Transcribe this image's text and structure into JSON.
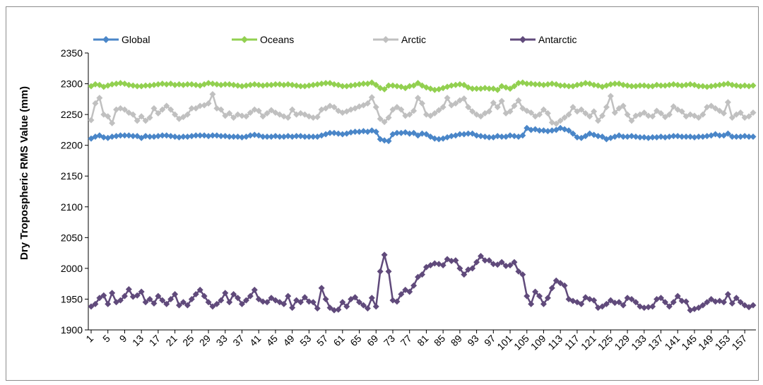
{
  "chart_data": {
    "type": "line",
    "title": "",
    "xlabel": "",
    "ylabel": "Dry Tropospheric RMS Value (mm)",
    "ylim": [
      1900,
      2350
    ],
    "yticks": [
      1900,
      1950,
      2000,
      2050,
      2100,
      2150,
      2200,
      2250,
      2300,
      2350
    ],
    "xlim": [
      1,
      159
    ],
    "xticks": [
      1,
      5,
      9,
      13,
      17,
      21,
      25,
      29,
      33,
      37,
      41,
      45,
      49,
      53,
      57,
      61,
      65,
      69,
      73,
      77,
      81,
      85,
      89,
      93,
      97,
      101,
      105,
      109,
      113,
      117,
      121,
      125,
      129,
      133,
      137,
      141,
      145,
      149,
      153,
      157
    ],
    "grid": false,
    "legend": "top",
    "x": [
      1,
      2,
      3,
      4,
      5,
      6,
      7,
      8,
      9,
      10,
      11,
      12,
      13,
      14,
      15,
      16,
      17,
      18,
      19,
      20,
      21,
      22,
      23,
      24,
      25,
      26,
      27,
      28,
      29,
      30,
      31,
      32,
      33,
      34,
      35,
      36,
      37,
      38,
      39,
      40,
      41,
      42,
      43,
      44,
      45,
      46,
      47,
      48,
      49,
      50,
      51,
      52,
      53,
      54,
      55,
      56,
      57,
      58,
      59,
      60,
      61,
      62,
      63,
      64,
      65,
      66,
      67,
      68,
      69,
      70,
      71,
      72,
      73,
      74,
      75,
      76,
      77,
      78,
      79,
      80,
      81,
      82,
      83,
      84,
      85,
      86,
      87,
      88,
      89,
      90,
      91,
      92,
      93,
      94,
      95,
      96,
      97,
      98,
      99,
      100,
      101,
      102,
      103,
      104,
      105,
      106,
      107,
      108,
      109,
      110,
      111,
      112,
      113,
      114,
      115,
      116,
      117,
      118,
      119,
      120,
      121,
      122,
      123,
      124,
      125,
      126,
      127,
      128,
      129,
      130,
      131,
      132,
      133,
      134,
      135,
      136,
      137,
      138,
      139,
      140,
      141,
      142,
      143,
      144,
      145,
      146,
      147,
      148,
      149,
      150,
      151,
      152,
      153,
      154,
      155,
      156,
      157,
      158,
      159
    ],
    "series": [
      {
        "name": "Global",
        "color": "#4a86c8",
        "marker": "diamond",
        "values": [
          2211,
          2214,
          2216,
          2213,
          2212,
          2214,
          2215,
          2216,
          2216,
          2216,
          2215,
          2215,
          2212,
          2215,
          2214,
          2214,
          2215,
          2216,
          2216,
          2215,
          2214,
          2213,
          2214,
          2214,
          2215,
          2216,
          2216,
          2216,
          2215,
          2216,
          2216,
          2215,
          2215,
          2214,
          2214,
          2214,
          2213,
          2214,
          2216,
          2217,
          2216,
          2214,
          2214,
          2214,
          2215,
          2214,
          2214,
          2215,
          2214,
          2215,
          2215,
          2214,
          2214,
          2214,
          2214,
          2216,
          2218,
          2220,
          2220,
          2219,
          2218,
          2219,
          2221,
          2222,
          2222,
          2223,
          2222,
          2224,
          2222,
          2210,
          2208,
          2207,
          2218,
          2220,
          2220,
          2221,
          2219,
          2220,
          2216,
          2219,
          2218,
          2214,
          2211,
          2210,
          2211,
          2213,
          2215,
          2216,
          2218,
          2218,
          2219,
          2219,
          2216,
          2215,
          2214,
          2213,
          2213,
          2215,
          2214,
          2214,
          2216,
          2215,
          2214,
          2216,
          2228,
          2225,
          2226,
          2224,
          2224,
          2223,
          2224,
          2225,
          2228,
          2226,
          2224,
          2219,
          2213,
          2212,
          2215,
          2219,
          2217,
          2215,
          2214,
          2210,
          2212,
          2214,
          2216,
          2214,
          2214,
          2215,
          2214,
          2213,
          2213,
          2212,
          2213,
          2213,
          2214,
          2213,
          2214,
          2215,
          2215,
          2214,
          2214,
          2214,
          2213,
          2214,
          2214,
          2215,
          2216,
          2218,
          2216,
          2216,
          2219,
          2214,
          2214,
          2214,
          2215,
          2214,
          2214
        ]
      },
      {
        "name": "Oceans",
        "color": "#92d050",
        "marker": "diamond",
        "values": [
          2296,
          2299,
          2298,
          2295,
          2297,
          2299,
          2300,
          2301,
          2300,
          2298,
          2297,
          2296,
          2296,
          2297,
          2297,
          2298,
          2299,
          2300,
          2299,
          2300,
          2298,
          2299,
          2298,
          2299,
          2299,
          2298,
          2297,
          2299,
          2301,
          2300,
          2299,
          2298,
          2299,
          2299,
          2298,
          2297,
          2296,
          2297,
          2298,
          2299,
          2298,
          2297,
          2298,
          2298,
          2299,
          2299,
          2298,
          2299,
          2298,
          2297,
          2296,
          2296,
          2297,
          2298,
          2299,
          2300,
          2301,
          2301,
          2299,
          2298,
          2296,
          2296,
          2297,
          2298,
          2299,
          2300,
          2300,
          2302,
          2298,
          2293,
          2291,
          2297,
          2297,
          2296,
          2295,
          2293,
          2296,
          2297,
          2301,
          2297,
          2294,
          2292,
          2290,
          2291,
          2293,
          2295,
          2297,
          2298,
          2299,
          2298,
          2294,
          2292,
          2292,
          2292,
          2293,
          2292,
          2292,
          2290,
          2296,
          2294,
          2292,
          2296,
          2301,
          2302,
          2300,
          2300,
          2299,
          2299,
          2298,
          2299,
          2300,
          2299,
          2297,
          2297,
          2296,
          2296,
          2298,
          2299,
          2301,
          2300,
          2298,
          2297,
          2295,
          2297,
          2299,
          2300,
          2300,
          2298,
          2297,
          2296,
          2296,
          2297,
          2297,
          2296,
          2296,
          2298,
          2297,
          2297,
          2298,
          2299,
          2298,
          2297,
          2298,
          2299,
          2298,
          2296,
          2296,
          2295,
          2296,
          2297,
          2298,
          2299,
          2300,
          2298,
          2297,
          2296,
          2297,
          2296,
          2297
        ]
      },
      {
        "name": "Arctic",
        "color": "#c0c0c0",
        "marker": "diamond",
        "values": [
          2241,
          2268,
          2277,
          2250,
          2247,
          2236,
          2258,
          2260,
          2258,
          2253,
          2250,
          2240,
          2247,
          2240,
          2245,
          2260,
          2252,
          2258,
          2264,
          2258,
          2250,
          2243,
          2246,
          2250,
          2260,
          2260,
          2264,
          2265,
          2268,
          2283,
          2260,
          2258,
          2248,
          2252,
          2245,
          2250,
          2248,
          2247,
          2253,
          2258,
          2256,
          2247,
          2252,
          2257,
          2253,
          2250,
          2247,
          2245,
          2258,
          2250,
          2252,
          2250,
          2247,
          2245,
          2246,
          2258,
          2260,
          2264,
          2262,
          2256,
          2253,
          2255,
          2258,
          2260,
          2263,
          2265,
          2268,
          2278,
          2262,
          2243,
          2238,
          2245,
          2258,
          2262,
          2258,
          2248,
          2250,
          2256,
          2277,
          2268,
          2250,
          2248,
          2252,
          2257,
          2262,
          2277,
          2265,
          2268,
          2273,
          2276,
          2262,
          2255,
          2250,
          2247,
          2252,
          2255,
          2269,
          2262,
          2272,
          2252,
          2255,
          2264,
          2273,
          2260,
          2256,
          2253,
          2247,
          2250,
          2258,
          2252,
          2237,
          2235,
          2240,
          2245,
          2250,
          2262,
          2255,
          2258,
          2252,
          2247,
          2255,
          2240,
          2248,
          2262,
          2280,
          2253,
          2260,
          2264,
          2250,
          2240,
          2248,
          2250,
          2253,
          2248,
          2247,
          2256,
          2252,
          2246,
          2250,
          2263,
          2258,
          2255,
          2247,
          2250,
          2248,
          2245,
          2250,
          2262,
          2264,
          2260,
          2256,
          2252,
          2270,
          2245,
          2250,
          2253,
          2245,
          2247,
          2253
        ]
      },
      {
        "name": "Antarctic",
        "color": "#604a7b",
        "marker": "diamond",
        "values": [
          1938,
          1942,
          1952,
          1956,
          1942,
          1960,
          1945,
          1948,
          1955,
          1966,
          1954,
          1956,
          1962,
          1945,
          1950,
          1943,
          1955,
          1948,
          1942,
          1950,
          1958,
          1940,
          1945,
          1940,
          1950,
          1958,
          1965,
          1955,
          1945,
          1938,
          1942,
          1948,
          1960,
          1945,
          1958,
          1952,
          1942,
          1948,
          1955,
          1965,
          1950,
          1946,
          1945,
          1952,
          1948,
          1945,
          1942,
          1955,
          1936,
          1948,
          1945,
          1953,
          1946,
          1945,
          1935,
          1968,
          1950,
          1936,
          1932,
          1933,
          1945,
          1938,
          1950,
          1953,
          1945,
          1940,
          1935,
          1952,
          1938,
          1995,
          2022,
          1995,
          1948,
          1946,
          1958,
          1965,
          1962,
          1972,
          1986,
          1990,
          2002,
          2005,
          2008,
          2007,
          2005,
          2015,
          2012,
          2013,
          2000,
          1990,
          1998,
          2000,
          2010,
          2020,
          2013,
          2013,
          2007,
          2006,
          2010,
          2004,
          2005,
          2010,
          1995,
          1990,
          1955,
          1942,
          1962,
          1955,
          1942,
          1952,
          1968,
          1980,
          1976,
          1972,
          1950,
          1947,
          1945,
          1942,
          1953,
          1950,
          1948,
          1936,
          1938,
          1942,
          1948,
          1944,
          1945,
          1940,
          1952,
          1950,
          1945,
          1938,
          1936,
          1937,
          1938,
          1950,
          1952,
          1945,
          1938,
          1945,
          1955,
          1947,
          1946,
          1932,
          1934,
          1936,
          1940,
          1945,
          1950,
          1946,
          1947,
          1945,
          1958,
          1943,
          1952,
          1945,
          1940,
          1937,
          1940
        ]
      }
    ]
  }
}
